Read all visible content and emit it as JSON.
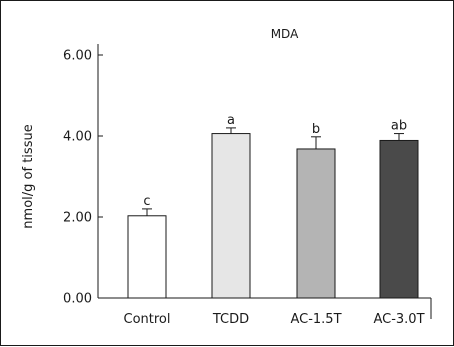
{
  "chart_data": {
    "type": "bar",
    "title": "MDA",
    "xlabel": "",
    "ylabel": "nmol/g of tissue",
    "ylim": [
      0,
      6
    ],
    "yticks": [
      "0.00",
      "2.00",
      "4.00",
      "6.00"
    ],
    "categories": [
      "Control",
      "TCDD",
      "AC-1.5T",
      "AC-3.0T"
    ],
    "values": [
      2.03,
      4.06,
      3.68,
      3.89
    ],
    "errors": [
      0.17,
      0.14,
      0.3,
      0.17
    ],
    "significance": [
      "c",
      "a",
      "b",
      "ab"
    ],
    "bar_colors": [
      "#ffffff",
      "#e6e6e6",
      "#b4b4b4",
      "#4a4a4a"
    ],
    "grid": false,
    "legend": "none"
  }
}
